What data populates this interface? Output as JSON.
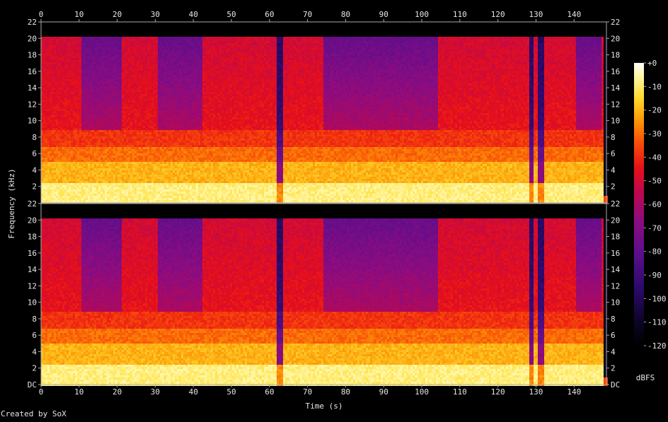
{
  "footer": {
    "created_by": "Created by SoX"
  },
  "chart_data": {
    "type": "heatmap",
    "xlabel": "Time (s)",
    "ylabel": "Frequency (kHz)",
    "x_ticks": [
      0,
      10,
      20,
      30,
      40,
      50,
      60,
      70,
      80,
      90,
      100,
      110,
      120,
      130,
      140
    ],
    "xlim": [
      0,
      148.5
    ],
    "channels": [
      {
        "y_tick_labels": [
          "2",
          "4",
          "6",
          "8",
          "10",
          "12",
          "14",
          "16",
          "18",
          "20",
          "22"
        ],
        "y_tick_values": [
          2,
          4,
          6,
          8,
          10,
          12,
          14,
          16,
          18,
          20,
          22
        ],
        "ylim": [
          0,
          22
        ]
      },
      {
        "y_tick_labels": [
          "DC",
          "2",
          "4",
          "6",
          "8",
          "10",
          "12",
          "14",
          "16",
          "18",
          "20",
          "22"
        ],
        "y_tick_values": [
          0,
          2,
          4,
          6,
          8,
          10,
          12,
          14,
          16,
          18,
          20,
          22
        ],
        "ylim": [
          0,
          22
        ]
      }
    ],
    "colorbar": {
      "label": "dBFS",
      "ticks": [
        "+0",
        "-10",
        "-20",
        "-30",
        "-40",
        "-50",
        "-60",
        "-70",
        "-80",
        "-90",
        "-100",
        "-110",
        "-120"
      ],
      "range": [
        -120,
        0
      ]
    },
    "loud_segments_s": [
      [
        0,
        10.5
      ],
      [
        21,
        30.5
      ],
      [
        42,
        52
      ],
      [
        65,
        73.5
      ],
      [
        103,
        128
      ],
      [
        134,
        140
      ]
    ],
    "quiet_segments_s": [
      [
        10.5,
        21
      ],
      [
        30.5,
        42
      ],
      [
        74,
        104
      ],
      [
        140,
        147
      ]
    ],
    "gaps_s": [
      62.5,
      128.5,
      131
    ],
    "cutoff_khz": 20.2
  }
}
